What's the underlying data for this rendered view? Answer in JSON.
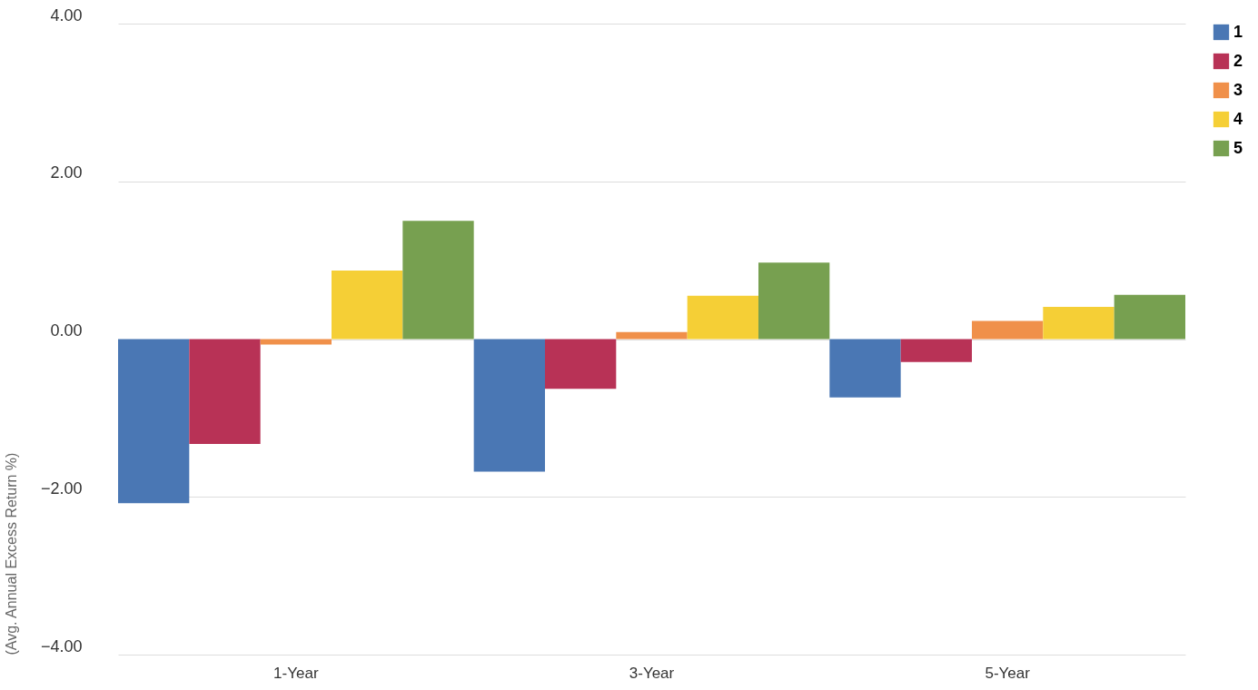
{
  "chart_data": {
    "type": "bar",
    "ylabel": "(Avg. Annual Excess Return %)",
    "categories": [
      "1-Year",
      "3-Year",
      "5-Year"
    ],
    "series": [
      {
        "name": "1",
        "color": "#4a77b4",
        "values": [
          -2.08,
          -1.68,
          -0.74
        ]
      },
      {
        "name": "2",
        "color": "#b83256",
        "values": [
          -1.33,
          -0.63,
          -0.29
        ]
      },
      {
        "name": "3",
        "color": "#f0904a",
        "values": [
          -0.07,
          0.09,
          0.23
        ]
      },
      {
        "name": "4",
        "color": "#f5cf36",
        "values": [
          0.87,
          0.55,
          0.41
        ]
      },
      {
        "name": "5",
        "color": "#77a050",
        "values": [
          1.5,
          0.97,
          0.56
        ]
      }
    ],
    "ylim": [
      -4,
      4
    ],
    "yticks": [
      {
        "value": -4,
        "label": "−4.00"
      },
      {
        "value": -2,
        "label": "−2.00"
      },
      {
        "value": 0,
        "label": "0.00"
      },
      {
        "value": 2,
        "label": "2.00"
      },
      {
        "value": 4,
        "label": "4.00"
      }
    ],
    "grid": "y",
    "legend": "top right"
  }
}
